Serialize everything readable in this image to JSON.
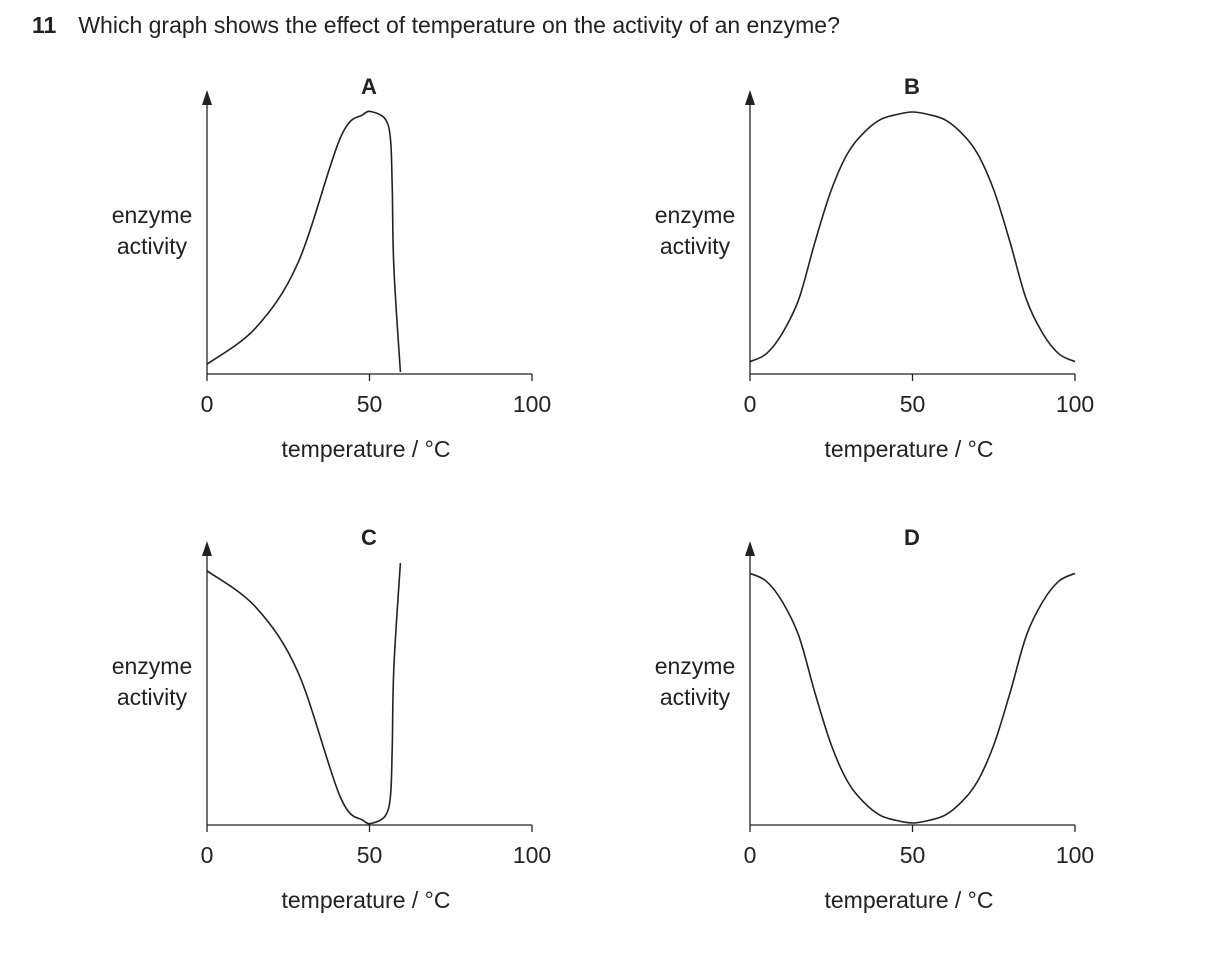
{
  "question": {
    "number": "11",
    "text": "Which graph shows the effect of temperature on the activity of an enzyme?"
  },
  "chart_data": [
    {
      "type": "line",
      "label": "A",
      "xlabel": "temperature / °C",
      "ylabel": [
        "enzyme",
        "activity"
      ],
      "xticks": [
        0,
        50,
        100
      ],
      "xlim": [
        0,
        100
      ],
      "ylim": [
        0,
        1
      ],
      "grid": false,
      "series": [
        {
          "x": [
            0,
            15,
            28,
            41,
            48,
            51,
            55,
            56.5,
            57,
            57.5,
            59.5
          ],
          "y": [
            0.03,
            0.17,
            0.42,
            0.9,
            0.99,
            1.0,
            0.97,
            0.89,
            0.7,
            0.4,
            0.0
          ]
        }
      ]
    },
    {
      "type": "line",
      "label": "B",
      "xlabel": "temperature / °C",
      "ylabel": [
        "enzyme",
        "activity"
      ],
      "xticks": [
        0,
        50,
        100
      ],
      "xlim": [
        0,
        100
      ],
      "ylim": [
        0,
        1
      ],
      "grid": false,
      "series": [
        {
          "x": [
            0,
            5,
            10,
            15,
            20,
            25,
            30,
            35,
            40,
            45,
            50,
            55,
            60,
            65,
            70,
            75,
            80,
            85,
            90,
            95,
            100
          ],
          "y": [
            0.04,
            0.07,
            0.15,
            0.28,
            0.5,
            0.7,
            0.84,
            0.92,
            0.97,
            0.99,
            1.0,
            0.99,
            0.97,
            0.92,
            0.84,
            0.7,
            0.5,
            0.28,
            0.15,
            0.07,
            0.04
          ]
        }
      ]
    },
    {
      "type": "line",
      "label": "C",
      "xlabel": "temperature / °C",
      "ylabel": [
        "enzyme",
        "activity"
      ],
      "xticks": [
        0,
        50,
        100
      ],
      "xlim": [
        0,
        100
      ],
      "ylim": [
        0,
        1
      ],
      "grid": false,
      "series": [
        {
          "x": [
            0,
            15,
            28,
            41,
            48,
            51,
            55,
            56.5,
            57,
            57.5,
            59.5
          ],
          "y": [
            0.97,
            0.83,
            0.58,
            0.1,
            0.01,
            0.0,
            0.03,
            0.11,
            0.3,
            0.6,
            1.0
          ]
        }
      ]
    },
    {
      "type": "line",
      "label": "D",
      "xlabel": "temperature / °C",
      "ylabel": [
        "enzyme",
        "activity"
      ],
      "xticks": [
        0,
        50,
        100
      ],
      "xlim": [
        0,
        100
      ],
      "ylim": [
        0,
        1
      ],
      "grid": false,
      "series": [
        {
          "x": [
            0,
            5,
            10,
            15,
            20,
            25,
            30,
            35,
            40,
            45,
            50,
            55,
            60,
            65,
            70,
            75,
            80,
            85,
            90,
            95,
            100
          ],
          "y": [
            0.96,
            0.93,
            0.85,
            0.72,
            0.5,
            0.3,
            0.16,
            0.08,
            0.03,
            0.01,
            0.0,
            0.01,
            0.03,
            0.08,
            0.16,
            0.3,
            0.5,
            0.72,
            0.85,
            0.93,
            0.96
          ]
        }
      ]
    }
  ]
}
